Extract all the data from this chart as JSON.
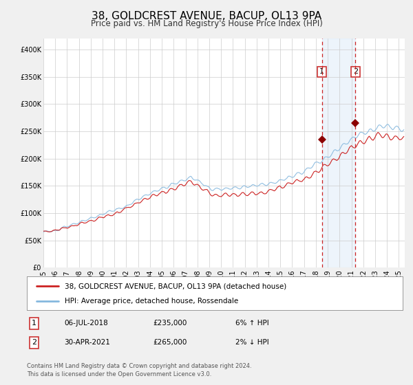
{
  "title": "38, GOLDCREST AVENUE, BACUP, OL13 9PA",
  "subtitle": "Price paid vs. HM Land Registry's House Price Index (HPI)",
  "ylim": [
    0,
    420000
  ],
  "xlim_start": 1995.0,
  "xlim_end": 2025.5,
  "yticks": [
    0,
    50000,
    100000,
    150000,
    200000,
    250000,
    300000,
    350000,
    400000
  ],
  "ytick_labels": [
    "£0",
    "£50K",
    "£100K",
    "£150K",
    "£200K",
    "£250K",
    "£300K",
    "£350K",
    "£400K"
  ],
  "xticks": [
    1995,
    1996,
    1997,
    1998,
    1999,
    2000,
    2001,
    2002,
    2003,
    2004,
    2005,
    2006,
    2007,
    2008,
    2009,
    2010,
    2011,
    2012,
    2013,
    2014,
    2015,
    2016,
    2017,
    2018,
    2019,
    2020,
    2021,
    2022,
    2023,
    2024,
    2025
  ],
  "hpi_color": "#85b8de",
  "price_color": "#cc2222",
  "marker_color": "#8b0000",
  "vline_color": "#cc2222",
  "shade_color": "#cce0f5",
  "sale1_x": 2018.51,
  "sale1_y": 235000,
  "sale2_x": 2021.33,
  "sale2_y": 265000,
  "legend_label1": "38, GOLDCREST AVENUE, BACUP, OL13 9PA (detached house)",
  "legend_label2": "HPI: Average price, detached house, Rossendale",
  "note1_num": "1",
  "note1_date": "06-JUL-2018",
  "note1_price": "£235,000",
  "note1_hpi": "6% ↑ HPI",
  "note2_num": "2",
  "note2_date": "30-APR-2021",
  "note2_price": "£265,000",
  "note2_hpi": "2% ↓ HPI",
  "footnote": "Contains HM Land Registry data © Crown copyright and database right 2024.\nThis data is licensed under the Open Government Licence v3.0.",
  "bg_color": "#f0f0f0",
  "plot_bg_color": "#ffffff",
  "grid_color": "#cccccc",
  "title_fontsize": 11,
  "subtitle_fontsize": 8.5,
  "tick_fontsize": 7,
  "legend_fontsize": 7.5,
  "note_fontsize": 7.5,
  "footnote_fontsize": 6
}
